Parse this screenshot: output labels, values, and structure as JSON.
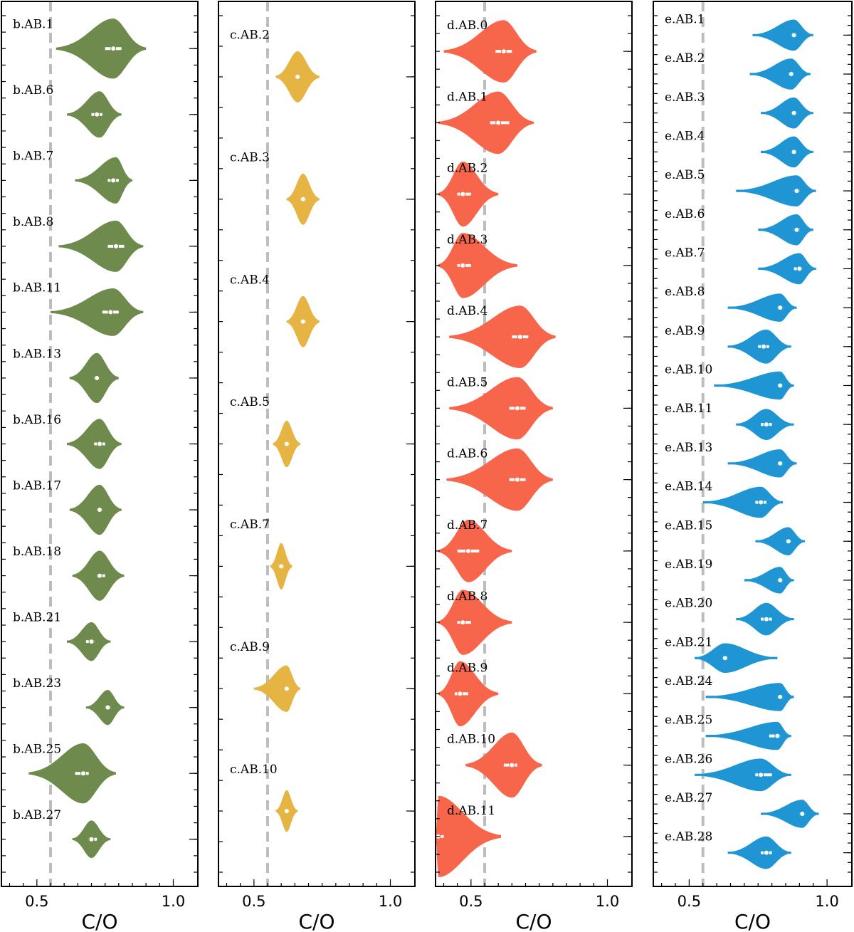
{
  "chart_data": [
    {
      "type": "violin",
      "xlabel": "C/O",
      "xlim": [
        0.37,
        1.09
      ],
      "xticks": [
        0.5,
        1.0
      ],
      "xtick_labels": [
        "0.5",
        "1.0"
      ],
      "reference_line": 0.55,
      "color": "#6e8b4d",
      "violins": [
        {
          "label": "b.AB.1",
          "median": 0.78,
          "peak": 0.78,
          "min": 0.57,
          "max": 0.9,
          "iqr": [
            0.75,
            0.81
          ],
          "width": 0.48
        },
        {
          "label": "b.AB.6",
          "median": 0.72,
          "peak": 0.73,
          "min": 0.61,
          "max": 0.81,
          "iqr": [
            0.7,
            0.74
          ],
          "width": 0.37
        },
        {
          "label": "b.AB.7",
          "median": 0.78,
          "peak": 0.79,
          "min": 0.64,
          "max": 0.85,
          "iqr": [
            0.76,
            0.8
          ],
          "width": 0.37
        },
        {
          "label": "b.AB.8",
          "median": 0.79,
          "peak": 0.79,
          "min": 0.58,
          "max": 0.89,
          "iqr": [
            0.76,
            0.82
          ],
          "width": 0.41
        },
        {
          "label": "b.AB.11",
          "median": 0.77,
          "peak": 0.78,
          "min": 0.55,
          "max": 0.89,
          "iqr": [
            0.74,
            0.8
          ],
          "width": 0.38
        },
        {
          "label": "b.AB.13",
          "median": 0.72,
          "peak": 0.72,
          "min": 0.62,
          "max": 0.8,
          "iqr": [
            0.71,
            0.73
          ],
          "width": 0.4
        },
        {
          "label": "b.AB.16",
          "median": 0.73,
          "peak": 0.73,
          "min": 0.61,
          "max": 0.81,
          "iqr": [
            0.71,
            0.75
          ],
          "width": 0.4
        },
        {
          "label": "b.AB.17",
          "median": 0.73,
          "peak": 0.73,
          "min": 0.62,
          "max": 0.81,
          "iqr": [
            0.72,
            0.74
          ],
          "width": 0.4
        },
        {
          "label": "b.AB.18",
          "median": 0.73,
          "peak": 0.73,
          "min": 0.63,
          "max": 0.82,
          "iqr": [
            0.72,
            0.75
          ],
          "width": 0.4
        },
        {
          "label": "b.AB.21",
          "median": 0.7,
          "peak": 0.7,
          "min": 0.61,
          "max": 0.77,
          "iqr": [
            0.68,
            0.71
          ],
          "width": 0.31
        },
        {
          "label": "b.AB.23",
          "median": 0.76,
          "peak": 0.76,
          "min": 0.68,
          "max": 0.82,
          "iqr": [
            0.75,
            0.77
          ],
          "width": 0.28
        },
        {
          "label": "b.AB.25",
          "median": 0.67,
          "peak": 0.67,
          "min": 0.47,
          "max": 0.79,
          "iqr": [
            0.64,
            0.69
          ],
          "width": 0.48
        },
        {
          "label": "b.AB.27",
          "median": 0.7,
          "peak": 0.7,
          "min": 0.63,
          "max": 0.77,
          "iqr": [
            0.69,
            0.72
          ],
          "width": 0.3
        }
      ]
    },
    {
      "type": "violin",
      "xlabel": "C/O",
      "xlim": [
        0.37,
        1.09
      ],
      "xticks": [
        0.5,
        1.0
      ],
      "xtick_labels": [
        "0.5",
        "1.0"
      ],
      "reference_line": 0.55,
      "color": "#e5b443",
      "violins": [
        {
          "label": "c.AB.2",
          "median": 0.66,
          "peak": 0.66,
          "min": 0.58,
          "max": 0.74,
          "iqr": [
            0.65,
            0.67
          ],
          "width": 0.22
        },
        {
          "label": "c.AB.3",
          "median": 0.68,
          "peak": 0.68,
          "min": 0.62,
          "max": 0.74,
          "iqr": [
            0.67,
            0.69
          ],
          "width": 0.22
        },
        {
          "label": "c.AB.4",
          "median": 0.68,
          "peak": 0.68,
          "min": 0.62,
          "max": 0.74,
          "iqr": [
            0.67,
            0.69
          ],
          "width": 0.22
        },
        {
          "label": "c.AB.5",
          "median": 0.62,
          "peak": 0.62,
          "min": 0.57,
          "max": 0.67,
          "iqr": [
            0.61,
            0.63
          ],
          "width": 0.2
        },
        {
          "label": "c.AB.7",
          "median": 0.6,
          "peak": 0.6,
          "min": 0.56,
          "max": 0.64,
          "iqr": [
            0.59,
            0.61
          ],
          "width": 0.2
        },
        {
          "label": "c.AB.9",
          "median": 0.62,
          "peak": 0.62,
          "min": 0.5,
          "max": 0.67,
          "iqr": [
            0.61,
            0.63
          ],
          "width": 0.2
        },
        {
          "label": "c.AB.10",
          "median": 0.62,
          "peak": 0.62,
          "min": 0.58,
          "max": 0.66,
          "iqr": [
            0.61,
            0.63
          ],
          "width": 0.18
        }
      ]
    },
    {
      "type": "violin",
      "xlabel": "C/O",
      "xlim": [
        0.37,
        1.09
      ],
      "xticks": [
        0.5,
        1.0
      ],
      "xtick_labels": [
        "0.5",
        "1.0"
      ],
      "reference_line": 0.55,
      "color": "#f7654a",
      "violins": [
        {
          "label": "d.AB.0",
          "median": 0.62,
          "peak": 0.62,
          "min": 0.4,
          "max": 0.74,
          "iqr": [
            0.59,
            0.65
          ],
          "width": 0.46
        },
        {
          "label": "d.AB.1",
          "median": 0.6,
          "peak": 0.6,
          "min": 0.38,
          "max": 0.73,
          "iqr": [
            0.57,
            0.64
          ],
          "width": 0.46
        },
        {
          "label": "d.AB.2",
          "median": 0.47,
          "peak": 0.47,
          "min": 0.38,
          "max": 0.6,
          "iqr": [
            0.45,
            0.5
          ],
          "width": 0.48
        },
        {
          "label": "d.AB.3",
          "median": 0.47,
          "peak": 0.47,
          "min": 0.38,
          "max": 0.67,
          "iqr": [
            0.45,
            0.5
          ],
          "width": 0.48
        },
        {
          "label": "d.AB.4",
          "median": 0.68,
          "peak": 0.68,
          "min": 0.42,
          "max": 0.81,
          "iqr": [
            0.65,
            0.71
          ],
          "width": 0.46
        },
        {
          "label": "d.AB.5",
          "median": 0.67,
          "peak": 0.67,
          "min": 0.42,
          "max": 0.8,
          "iqr": [
            0.64,
            0.7
          ],
          "width": 0.46
        },
        {
          "label": "d.AB.6",
          "median": 0.67,
          "peak": 0.67,
          "min": 0.41,
          "max": 0.8,
          "iqr": [
            0.64,
            0.7
          ],
          "width": 0.46
        },
        {
          "label": "d.AB.7",
          "median": 0.49,
          "peak": 0.49,
          "min": 0.38,
          "max": 0.65,
          "iqr": [
            0.45,
            0.53
          ],
          "width": 0.46
        },
        {
          "label": "d.AB.8",
          "median": 0.47,
          "peak": 0.47,
          "min": 0.38,
          "max": 0.65,
          "iqr": [
            0.45,
            0.5
          ],
          "width": 0.48
        },
        {
          "label": "d.AB.9",
          "median": 0.46,
          "peak": 0.46,
          "min": 0.38,
          "max": 0.6,
          "iqr": [
            0.44,
            0.49
          ],
          "width": 0.48
        },
        {
          "label": "d.AB.10",
          "median": 0.65,
          "peak": 0.65,
          "min": 0.48,
          "max": 0.76,
          "iqr": [
            0.62,
            0.67
          ],
          "width": 0.48
        },
        {
          "label": "d.AB.11",
          "median": 0.38,
          "peak": 0.38,
          "min": 0.37,
          "max": 0.61,
          "iqr": [
            0.37,
            0.4
          ],
          "width": 0.6
        }
      ]
    },
    {
      "type": "violin",
      "xlabel": "C/O",
      "xlim": [
        0.37,
        1.09
      ],
      "xticks": [
        0.5,
        1.0
      ],
      "xtick_labels": [
        "0.5",
        "1.0"
      ],
      "reference_line": 0.55,
      "color": "#1f96d3",
      "violins": [
        {
          "label": "e.AB.1",
          "median": 0.88,
          "peak": 0.88,
          "min": 0.73,
          "max": 0.95,
          "iqr": [
            0.87,
            0.89
          ],
          "width": 0.42
        },
        {
          "label": "e.AB.2",
          "median": 0.87,
          "peak": 0.87,
          "min": 0.72,
          "max": 0.94,
          "iqr": [
            0.86,
            0.88
          ],
          "width": 0.42
        },
        {
          "label": "e.AB.3",
          "median": 0.88,
          "peak": 0.88,
          "min": 0.76,
          "max": 0.95,
          "iqr": [
            0.87,
            0.89
          ],
          "width": 0.42
        },
        {
          "label": "e.AB.4",
          "median": 0.88,
          "peak": 0.88,
          "min": 0.76,
          "max": 0.95,
          "iqr": [
            0.87,
            0.89
          ],
          "width": 0.42
        },
        {
          "label": "e.AB.5",
          "median": 0.89,
          "peak": 0.89,
          "min": 0.67,
          "max": 0.96,
          "iqr": [
            0.88,
            0.9
          ],
          "width": 0.42
        },
        {
          "label": "e.AB.6",
          "median": 0.89,
          "peak": 0.89,
          "min": 0.75,
          "max": 0.95,
          "iqr": [
            0.88,
            0.9
          ],
          "width": 0.42
        },
        {
          "label": "e.AB.7",
          "median": 0.9,
          "peak": 0.9,
          "min": 0.75,
          "max": 0.96,
          "iqr": [
            0.88,
            0.91
          ],
          "width": 0.42
        },
        {
          "label": "e.AB.8",
          "median": 0.83,
          "peak": 0.83,
          "min": 0.64,
          "max": 0.89,
          "iqr": [
            0.82,
            0.84
          ],
          "width": 0.38
        },
        {
          "label": "e.AB.9",
          "median": 0.77,
          "peak": 0.78,
          "min": 0.64,
          "max": 0.87,
          "iqr": [
            0.75,
            0.79
          ],
          "width": 0.46
        },
        {
          "label": "e.AB.10",
          "median": 0.83,
          "peak": 0.83,
          "min": 0.59,
          "max": 0.88,
          "iqr": [
            0.82,
            0.84
          ],
          "width": 0.38
        },
        {
          "label": "e.AB.11",
          "median": 0.78,
          "peak": 0.78,
          "min": 0.67,
          "max": 0.88,
          "iqr": [
            0.76,
            0.8
          ],
          "width": 0.42
        },
        {
          "label": "e.AB.13",
          "median": 0.83,
          "peak": 0.83,
          "min": 0.64,
          "max": 0.89,
          "iqr": [
            0.82,
            0.84
          ],
          "width": 0.38
        },
        {
          "label": "e.AB.14",
          "median": 0.76,
          "peak": 0.76,
          "min": 0.55,
          "max": 0.84,
          "iqr": [
            0.74,
            0.78
          ],
          "width": 0.42
        },
        {
          "label": "e.AB.15",
          "median": 0.86,
          "peak": 0.86,
          "min": 0.74,
          "max": 0.92,
          "iqr": [
            0.85,
            0.87
          ],
          "width": 0.38
        },
        {
          "label": "e.AB.19",
          "median": 0.83,
          "peak": 0.83,
          "min": 0.7,
          "max": 0.88,
          "iqr": [
            0.82,
            0.84
          ],
          "width": 0.36
        },
        {
          "label": "e.AB.20",
          "median": 0.78,
          "peak": 0.78,
          "min": 0.67,
          "max": 0.88,
          "iqr": [
            0.76,
            0.8
          ],
          "width": 0.44
        },
        {
          "label": "e.AB.21",
          "median": 0.63,
          "peak": 0.63,
          "min": 0.52,
          "max": 0.82,
          "iqr": [
            0.62,
            0.64
          ],
          "width": 0.4
        },
        {
          "label": "e.AB.24",
          "median": 0.83,
          "peak": 0.83,
          "min": 0.56,
          "max": 0.88,
          "iqr": [
            0.82,
            0.84
          ],
          "width": 0.38
        },
        {
          "label": "e.AB.25",
          "median": 0.82,
          "peak": 0.82,
          "min": 0.56,
          "max": 0.87,
          "iqr": [
            0.79,
            0.83
          ],
          "width": 0.38
        },
        {
          "label": "e.AB.26",
          "median": 0.76,
          "peak": 0.76,
          "min": 0.52,
          "max": 0.87,
          "iqr": [
            0.74,
            0.8
          ],
          "width": 0.44
        },
        {
          "label": "e.AB.27",
          "median": 0.91,
          "peak": 0.91,
          "min": 0.76,
          "max": 0.97,
          "iqr": [
            0.9,
            0.92
          ],
          "width": 0.38
        },
        {
          "label": "e.AB.28",
          "median": 0.78,
          "peak": 0.78,
          "min": 0.64,
          "max": 0.87,
          "iqr": [
            0.76,
            0.8
          ],
          "width": 0.44
        }
      ]
    }
  ]
}
